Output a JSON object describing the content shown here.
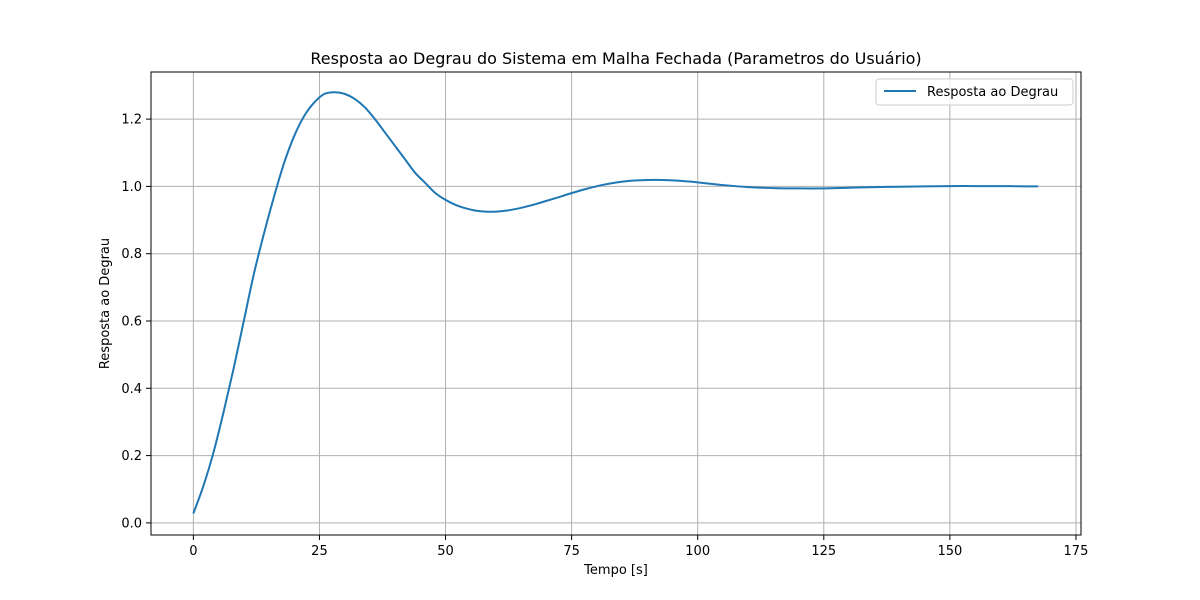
{
  "chart_data": {
    "type": "line",
    "title": "Resposta ao Degrau do Sistema em Malha Fechada (Parametros do Usuário)",
    "xlabel": "Tempo [s]",
    "ylabel": "Resposta ao Degrau",
    "xlim": [
      -8.4,
      176.0
    ],
    "ylim": [
      -0.036,
      1.34
    ],
    "xticks": [
      0,
      25,
      50,
      75,
      100,
      125,
      150,
      175
    ],
    "yticks": [
      0.0,
      0.2,
      0.4,
      0.6,
      0.8,
      1.0,
      1.2
    ],
    "xtick_labels": [
      "0",
      "25",
      "50",
      "75",
      "100",
      "125",
      "150",
      "175"
    ],
    "ytick_labels": [
      "0.0",
      "0.2",
      "0.4",
      "0.6",
      "0.8",
      "1.0",
      "1.2"
    ],
    "grid": true,
    "legend_position": "top-right",
    "colors": {
      "series": "#1f77b4",
      "grid": "#b0b0b0"
    },
    "series": [
      {
        "name": "Resposta ao Degrau",
        "x": [
          0,
          2,
          4,
          6,
          8,
          10,
          12,
          14,
          16,
          18,
          20,
          22,
          24,
          26,
          28,
          30,
          32,
          34,
          36,
          38,
          40,
          42,
          44,
          46,
          48,
          50,
          52,
          54,
          56,
          58,
          60,
          62,
          64,
          66,
          68,
          70,
          72,
          75,
          78,
          81,
          84,
          87,
          90,
          93,
          96,
          100,
          105,
          110,
          115,
          120,
          125,
          130,
          135,
          140,
          145,
          150,
          155,
          160,
          165,
          167.5
        ],
        "y": [
          0.028,
          0.11,
          0.21,
          0.33,
          0.46,
          0.6,
          0.74,
          0.86,
          0.97,
          1.07,
          1.15,
          1.21,
          1.25,
          1.275,
          1.28,
          1.275,
          1.26,
          1.235,
          1.2,
          1.16,
          1.12,
          1.08,
          1.04,
          1.01,
          0.98,
          0.96,
          0.945,
          0.935,
          0.928,
          0.925,
          0.925,
          0.928,
          0.933,
          0.94,
          0.948,
          0.957,
          0.966,
          0.98,
          0.993,
          1.004,
          1.012,
          1.017,
          1.019,
          1.019,
          1.017,
          1.012,
          1.004,
          0.998,
          0.995,
          0.994,
          0.994,
          0.996,
          0.998,
          0.999,
          1.0,
          1.001,
          1.001,
          1.001,
          1.0,
          1.0
        ]
      }
    ]
  }
}
